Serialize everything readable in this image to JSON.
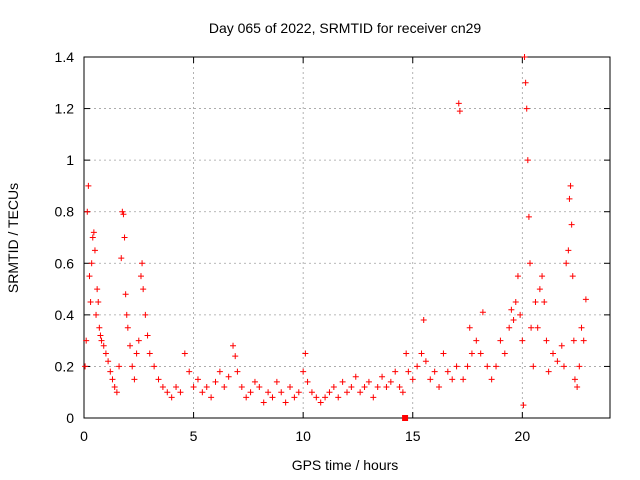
{
  "chart_data": {
    "type": "scatter",
    "title": "Day 065 of 2022, SRMTID for receiver cn29",
    "xlabel": "GPS time / hours",
    "ylabel": "SRMTID / TECUs",
    "xlim": [
      0,
      24
    ],
    "ylim": [
      0,
      1.4
    ],
    "x_ticks": [
      0,
      5,
      10,
      15,
      20
    ],
    "x_tick_labels": [
      "0",
      "5",
      "10",
      "15",
      "20"
    ],
    "y_ticks": [
      0,
      0.2,
      0.4,
      0.6,
      0.8,
      1.0,
      1.2,
      1.4
    ],
    "y_tick_labels": [
      "0",
      "0.2",
      "0.4",
      "0.6",
      "0.8",
      "1",
      "1.2",
      "1.4"
    ],
    "grid": true,
    "marker": "+",
    "color": "#ff0000",
    "series": [
      {
        "name": "cn29",
        "points": [
          [
            0.05,
            0.2
          ],
          [
            0.1,
            0.3
          ],
          [
            0.15,
            0.8
          ],
          [
            0.2,
            0.9
          ],
          [
            0.25,
            0.55
          ],
          [
            0.3,
            0.45
          ],
          [
            0.35,
            0.6
          ],
          [
            0.4,
            0.7
          ],
          [
            0.45,
            0.72
          ],
          [
            0.5,
            0.65
          ],
          [
            0.55,
            0.4
          ],
          [
            0.6,
            0.5
          ],
          [
            0.65,
            0.45
          ],
          [
            0.7,
            0.35
          ],
          [
            0.75,
            0.32
          ],
          [
            0.8,
            0.3
          ],
          [
            0.9,
            0.28
          ],
          [
            1.0,
            0.25
          ],
          [
            1.1,
            0.22
          ],
          [
            1.2,
            0.18
          ],
          [
            1.3,
            0.15
          ],
          [
            1.4,
            0.12
          ],
          [
            1.5,
            0.1
          ],
          [
            1.6,
            0.2
          ],
          [
            1.7,
            0.62
          ],
          [
            1.75,
            0.8
          ],
          [
            1.8,
            0.79
          ],
          [
            1.85,
            0.7
          ],
          [
            1.9,
            0.48
          ],
          [
            1.95,
            0.4
          ],
          [
            2.0,
            0.35
          ],
          [
            2.1,
            0.28
          ],
          [
            2.2,
            0.2
          ],
          [
            2.3,
            0.15
          ],
          [
            2.4,
            0.25
          ],
          [
            2.5,
            0.3
          ],
          [
            2.6,
            0.55
          ],
          [
            2.65,
            0.6
          ],
          [
            2.7,
            0.5
          ],
          [
            2.8,
            0.4
          ],
          [
            2.9,
            0.32
          ],
          [
            3.0,
            0.25
          ],
          [
            3.2,
            0.2
          ],
          [
            3.4,
            0.15
          ],
          [
            3.6,
            0.12
          ],
          [
            3.8,
            0.1
          ],
          [
            4.0,
            0.08
          ],
          [
            4.2,
            0.12
          ],
          [
            4.4,
            0.1
          ],
          [
            4.6,
            0.25
          ],
          [
            4.8,
            0.18
          ],
          [
            5.0,
            0.12
          ],
          [
            5.2,
            0.15
          ],
          [
            5.4,
            0.1
          ],
          [
            5.6,
            0.12
          ],
          [
            5.8,
            0.08
          ],
          [
            6.0,
            0.14
          ],
          [
            6.2,
            0.18
          ],
          [
            6.4,
            0.12
          ],
          [
            6.6,
            0.16
          ],
          [
            6.8,
            0.28
          ],
          [
            6.9,
            0.24
          ],
          [
            7.0,
            0.18
          ],
          [
            7.2,
            0.12
          ],
          [
            7.4,
            0.08
          ],
          [
            7.6,
            0.1
          ],
          [
            7.8,
            0.14
          ],
          [
            8.0,
            0.12
          ],
          [
            8.2,
            0.06
          ],
          [
            8.4,
            0.1
          ],
          [
            8.6,
            0.08
          ],
          [
            8.8,
            0.14
          ],
          [
            9.0,
            0.1
          ],
          [
            9.2,
            0.06
          ],
          [
            9.4,
            0.12
          ],
          [
            9.6,
            0.08
          ],
          [
            9.8,
            0.1
          ],
          [
            10.0,
            0.18
          ],
          [
            10.1,
            0.25
          ],
          [
            10.2,
            0.14
          ],
          [
            10.4,
            0.1
          ],
          [
            10.6,
            0.08
          ],
          [
            10.8,
            0.06
          ],
          [
            11.0,
            0.08
          ],
          [
            11.2,
            0.1
          ],
          [
            11.4,
            0.12
          ],
          [
            11.6,
            0.08
          ],
          [
            11.8,
            0.14
          ],
          [
            12.0,
            0.1
          ],
          [
            12.2,
            0.12
          ],
          [
            12.4,
            0.16
          ],
          [
            12.6,
            0.1
          ],
          [
            12.8,
            0.12
          ],
          [
            13.0,
            0.14
          ],
          [
            13.2,
            0.08
          ],
          [
            13.4,
            0.12
          ],
          [
            13.6,
            0.16
          ],
          [
            13.8,
            0.12
          ],
          [
            14.0,
            0.14
          ],
          [
            14.2,
            0.18
          ],
          [
            14.4,
            0.12
          ],
          [
            14.55,
            0.1
          ],
          [
            14.7,
            0.25
          ],
          [
            14.8,
            0.18
          ],
          [
            15.0,
            0.15
          ],
          [
            15.2,
            0.2
          ],
          [
            15.4,
            0.25
          ],
          [
            15.5,
            0.38
          ],
          [
            15.6,
            0.22
          ],
          [
            15.8,
            0.15
          ],
          [
            16.0,
            0.18
          ],
          [
            16.2,
            0.12
          ],
          [
            16.4,
            0.25
          ],
          [
            16.6,
            0.18
          ],
          [
            16.8,
            0.15
          ],
          [
            17.0,
            0.2
          ],
          [
            17.1,
            1.22
          ],
          [
            17.15,
            1.19
          ],
          [
            17.3,
            0.15
          ],
          [
            17.5,
            0.2
          ],
          [
            17.6,
            0.35
          ],
          [
            17.7,
            0.25
          ],
          [
            17.9,
            0.3
          ],
          [
            18.1,
            0.25
          ],
          [
            18.2,
            0.41
          ],
          [
            18.4,
            0.2
          ],
          [
            18.6,
            0.15
          ],
          [
            18.8,
            0.2
          ],
          [
            19.0,
            0.3
          ],
          [
            19.2,
            0.25
          ],
          [
            19.4,
            0.35
          ],
          [
            19.5,
            0.42
          ],
          [
            19.6,
            0.38
          ],
          [
            19.7,
            0.45
          ],
          [
            19.8,
            0.55
          ],
          [
            19.9,
            0.4
          ],
          [
            20.0,
            0.3
          ],
          [
            20.05,
            0.05
          ],
          [
            20.1,
            1.4
          ],
          [
            20.15,
            1.3
          ],
          [
            20.2,
            1.2
          ],
          [
            20.25,
            1.0
          ],
          [
            20.3,
            0.78
          ],
          [
            20.35,
            0.6
          ],
          [
            20.4,
            0.35
          ],
          [
            20.5,
            0.2
          ],
          [
            20.6,
            0.45
          ],
          [
            20.7,
            0.35
          ],
          [
            20.8,
            0.5
          ],
          [
            20.9,
            0.55
          ],
          [
            21.0,
            0.45
          ],
          [
            21.1,
            0.3
          ],
          [
            21.2,
            0.18
          ],
          [
            21.4,
            0.25
          ],
          [
            21.6,
            0.22
          ],
          [
            21.8,
            0.28
          ],
          [
            21.9,
            0.2
          ],
          [
            22.0,
            0.6
          ],
          [
            22.1,
            0.65
          ],
          [
            22.15,
            0.85
          ],
          [
            22.2,
            0.9
          ],
          [
            22.25,
            0.75
          ],
          [
            22.3,
            0.55
          ],
          [
            22.35,
            0.3
          ],
          [
            22.4,
            0.15
          ],
          [
            22.5,
            0.12
          ],
          [
            22.6,
            0.2
          ],
          [
            22.7,
            0.35
          ],
          [
            22.8,
            0.3
          ],
          [
            22.9,
            0.46
          ]
        ]
      }
    ],
    "annotations": [
      {
        "type": "filled-square",
        "x": 14.65,
        "y": 0.0,
        "color": "#ff0000"
      }
    ]
  }
}
